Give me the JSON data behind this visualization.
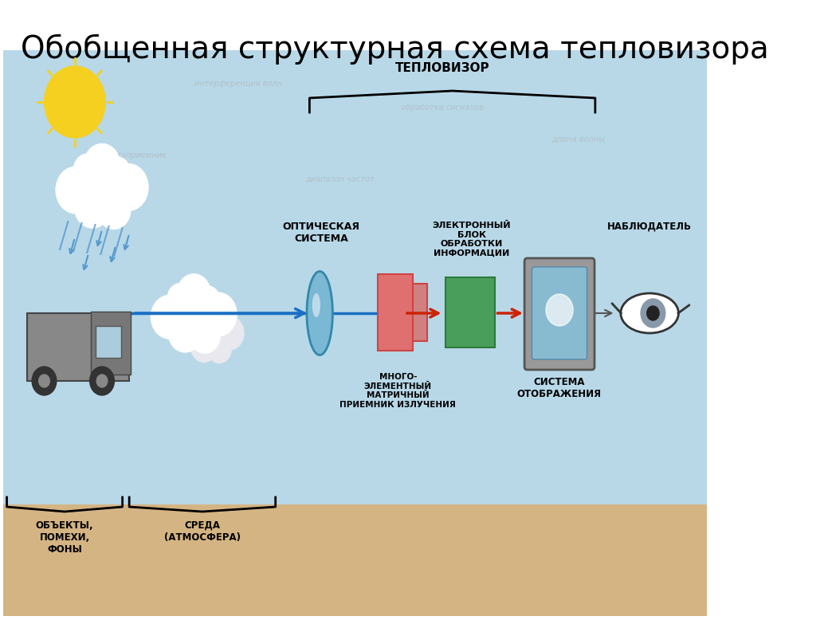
{
  "title": "Обобщенная структурная схема тепловизора",
  "title_fontsize": 28,
  "bg_color": "#ffffff",
  "diagram_bg_sky": "#b8d8e8",
  "diagram_bg_sand": "#d4b483",
  "labels": {
    "teplovizor": "ТЕПЛОВИЗОР",
    "optical": "ОПТИЧЕСКАЯ\nСИСТЕМА",
    "detector": "МНОГО-\nЭЛЕМЕНТНЫЙ\nМАТРИЧНЫЙ\nПРИЕМНИК ИЗЛУЧЕНИЯ",
    "electronic": "ЭЛЕКТРОННЫЙ\nБЛОК\nОБРАБОТКИ\nИНФОРМАЦИИ",
    "display": "СИСТЕМА\nОТОБРАЖЕНИЯ",
    "observer": "НАБЛЮДАТЕЛЬ",
    "objects": "ОБЪЕКТЫ,\nПОМЕХИ,\nФОНЫ",
    "medium": "СРЕДА\n(АТМОСФЕРА)"
  },
  "arrow_color": "#1a6fc4",
  "small_arrow_color": "#cc2200",
  "lens_color": "#7ab8d4",
  "detector_color": "#e07070",
  "detector2_color": "#cc8888",
  "electronic_color": "#4a9e5c",
  "display_bg": "#888888",
  "display_screen": "#88bbd0"
}
